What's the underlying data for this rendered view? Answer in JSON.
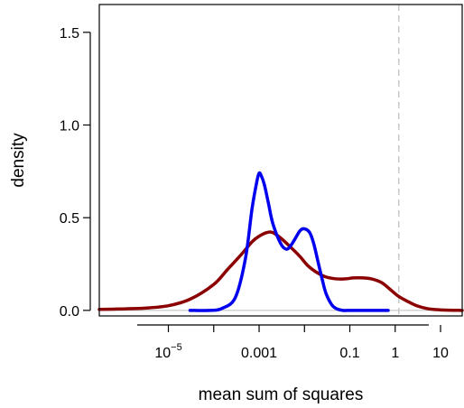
{
  "chart_data": {
    "type": "line",
    "xlabel": "mean sum of squares",
    "ylabel": "density",
    "x_scale": "log10",
    "xlim": [
      3e-07,
      30
    ],
    "ylim": [
      -0.03,
      1.65
    ],
    "x_ticks": [
      {
        "value": 1e-05,
        "label_base": "10",
        "label_exp": "−5"
      },
      {
        "value": 0.001,
        "label": "0.001"
      },
      {
        "value": 0.1,
        "label": "0.1"
      },
      {
        "value": 1,
        "label": "1"
      },
      {
        "value": 10,
        "label": "10"
      }
    ],
    "x_minor_ticks": [
      1e-07,
      1e-06,
      0.0001,
      0.01
    ],
    "y_ticks": [
      {
        "value": 0.0,
        "label": "0.0"
      },
      {
        "value": 0.5,
        "label": "0.5"
      },
      {
        "value": 1.0,
        "label": "1.0"
      },
      {
        "value": 1.5,
        "label": "1.5"
      }
    ],
    "reference_lines": [
      {
        "orientation": "vertical",
        "x": 1.2,
        "style": "dashed",
        "color": "#c8c8c8"
      },
      {
        "orientation": "horizontal",
        "y": 0,
        "style": "solid",
        "color": "#c8c8c8"
      }
    ],
    "series": [
      {
        "color": "#8b0000",
        "x": [
          3e-07,
          1e-06,
          3e-06,
          1e-05,
          3e-05,
          0.0001,
          0.0002,
          0.0004,
          0.0007,
          0.001,
          0.0015,
          0.002,
          0.003,
          0.005,
          0.008,
          0.012,
          0.02,
          0.03,
          0.05,
          0.08,
          0.12,
          0.2,
          0.3,
          0.5,
          0.8,
          1.2,
          2,
          3,
          5,
          8,
          15,
          30
        ],
        "y": [
          0.005,
          0.008,
          0.012,
          0.025,
          0.06,
          0.14,
          0.22,
          0.3,
          0.37,
          0.4,
          0.42,
          0.42,
          0.39,
          0.34,
          0.29,
          0.24,
          0.2,
          0.18,
          0.17,
          0.17,
          0.175,
          0.175,
          0.17,
          0.15,
          0.11,
          0.075,
          0.045,
          0.025,
          0.01,
          0.004,
          0.001,
          0.0
        ]
      },
      {
        "color": "#0000ee",
        "x": [
          3e-05,
          8e-05,
          0.00015,
          0.0003,
          0.0005,
          0.0007,
          0.0009,
          0.001,
          0.0011,
          0.0013,
          0.0016,
          0.002,
          0.003,
          0.004,
          0.005,
          0.006,
          0.008,
          0.01,
          0.013,
          0.016,
          0.02,
          0.025,
          0.03,
          0.04,
          0.05,
          0.07,
          0.1,
          0.15,
          0.2,
          0.3,
          0.5,
          0.7
        ],
        "y": [
          0.0,
          0.0,
          0.01,
          0.07,
          0.28,
          0.55,
          0.7,
          0.74,
          0.73,
          0.68,
          0.58,
          0.47,
          0.36,
          0.33,
          0.35,
          0.38,
          0.43,
          0.44,
          0.42,
          0.36,
          0.26,
          0.16,
          0.09,
          0.03,
          0.01,
          0.0,
          0.0,
          0.0,
          0.0,
          0.0,
          0.0,
          0.0
        ]
      }
    ]
  }
}
